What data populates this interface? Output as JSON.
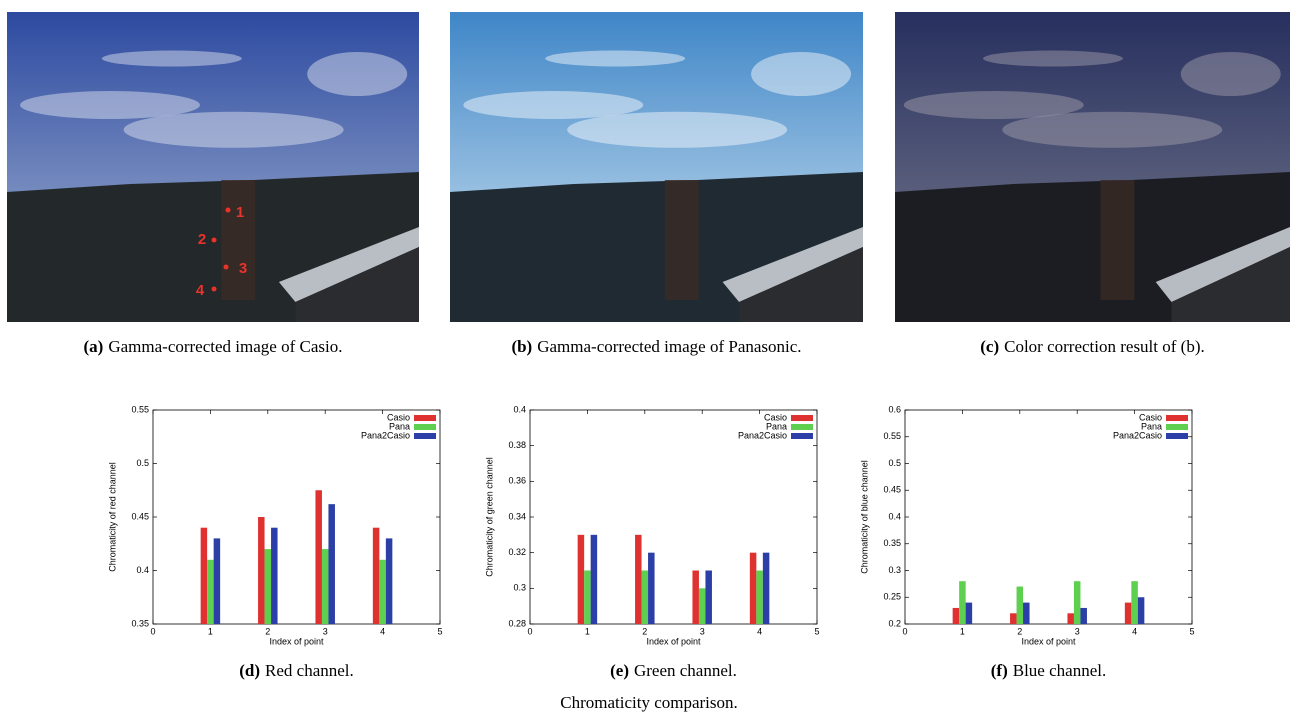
{
  "figures": [
    {
      "label": "(a)",
      "caption": "Gamma-corrected image of Casio."
    },
    {
      "label": "(b)",
      "caption": "Gamma-corrected image of Panasonic."
    },
    {
      "label": "(c)",
      "caption": "Color correction result of (b)."
    }
  ],
  "photo_points": [
    "1",
    "2",
    "3",
    "4"
  ],
  "chart_data": [
    {
      "type": "bar",
      "label": "(d)",
      "caption": "Red channel.",
      "xlabel": "Index of point",
      "ylabel": "Chromaticity of red channel",
      "x": [
        1,
        2,
        3,
        4
      ],
      "xlim": [
        0,
        5
      ],
      "xticks": [
        0,
        1,
        2,
        3,
        4,
        5
      ],
      "ylim": [
        0.35,
        0.55
      ],
      "yticks": [
        0.35,
        0.4,
        0.45,
        0.5,
        0.55
      ],
      "legend": "upper right",
      "series": [
        {
          "name": "Casio",
          "color": "#e03131",
          "values": [
            0.44,
            0.45,
            0.475,
            0.44
          ]
        },
        {
          "name": "Pana",
          "color": "#5fcf4f",
          "values": [
            0.41,
            0.42,
            0.42,
            0.41
          ]
        },
        {
          "name": "Pana2Casio",
          "color": "#2b3fa6",
          "values": [
            0.43,
            0.44,
            0.462,
            0.43
          ]
        }
      ]
    },
    {
      "type": "bar",
      "label": "(e)",
      "caption": "Green channel.",
      "xlabel": "Index of point",
      "ylabel": "Chromaticity of green channel",
      "x": [
        1,
        2,
        3,
        4
      ],
      "xlim": [
        0,
        5
      ],
      "xticks": [
        0,
        1,
        2,
        3,
        4,
        5
      ],
      "ylim": [
        0.28,
        0.4
      ],
      "yticks": [
        0.28,
        0.3,
        0.32,
        0.34,
        0.36,
        0.38,
        0.4
      ],
      "legend": "upper right",
      "series": [
        {
          "name": "Casio",
          "color": "#e03131",
          "values": [
            0.33,
            0.33,
            0.31,
            0.32
          ]
        },
        {
          "name": "Pana",
          "color": "#5fcf4f",
          "values": [
            0.31,
            0.31,
            0.3,
            0.31
          ]
        },
        {
          "name": "Pana2Casio",
          "color": "#2b3fa6",
          "values": [
            0.33,
            0.32,
            0.31,
            0.32
          ]
        }
      ]
    },
    {
      "type": "bar",
      "label": "(f)",
      "caption": "Blue channel.",
      "xlabel": "Index of point",
      "ylabel": "Chromaticity of blue channel",
      "x": [
        1,
        2,
        3,
        4
      ],
      "xlim": [
        0,
        5
      ],
      "xticks": [
        0,
        1,
        2,
        3,
        4,
        5
      ],
      "ylim": [
        0.2,
        0.6
      ],
      "yticks": [
        0.2,
        0.25,
        0.3,
        0.35,
        0.4,
        0.45,
        0.5,
        0.55,
        0.6
      ],
      "legend": "upper right",
      "series": [
        {
          "name": "Casio",
          "color": "#e03131",
          "values": [
            0.23,
            0.22,
            0.22,
            0.24
          ]
        },
        {
          "name": "Pana",
          "color": "#5fcf4f",
          "values": [
            0.28,
            0.27,
            0.28,
            0.28
          ]
        },
        {
          "name": "Pana2Casio",
          "color": "#2b3fa6",
          "values": [
            0.24,
            0.24,
            0.23,
            0.25
          ]
        }
      ]
    }
  ],
  "caption": "Chromaticity comparison."
}
